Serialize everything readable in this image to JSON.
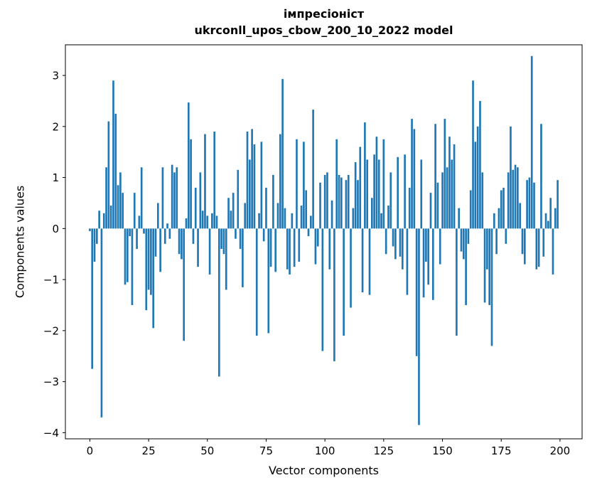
{
  "chart_data": {
    "type": "bar",
    "title": "імпресіоніст\nukrconll_upos_cbow_200_10_2022 model",
    "xlabel": "Vector components",
    "ylabel": "Components values",
    "bar_color": "#1f77b4",
    "bar_width": 0.8,
    "grid": false,
    "legend": null,
    "xlim": [
      -10.4,
      209.4
    ],
    "ylim": [
      -4.12,
      3.6
    ],
    "xticks": [
      0,
      25,
      50,
      75,
      100,
      125,
      150,
      175,
      200
    ],
    "yticks": [
      -4,
      -3,
      -2,
      -1,
      0,
      1,
      2,
      3
    ],
    "values": [
      -0.05,
      -2.75,
      -0.65,
      -0.3,
      0.35,
      -3.7,
      0.3,
      1.2,
      2.1,
      0.45,
      2.9,
      2.25,
      0.85,
      1.1,
      0.7,
      -1.1,
      -1.05,
      -0.15,
      -1.5,
      0.7,
      -0.4,
      0.25,
      1.2,
      -0.1,
      -1.6,
      -1.2,
      -1.3,
      -1.95,
      -0.55,
      0.5,
      -0.85,
      1.2,
      -0.3,
      0.1,
      -0.2,
      1.25,
      1.1,
      1.2,
      -0.5,
      -0.6,
      -2.2,
      0.2,
      2.47,
      1.75,
      -0.3,
      0.8,
      -0.75,
      1.1,
      0.35,
      1.85,
      0.25,
      -0.9,
      0.3,
      1.9,
      0.25,
      -2.9,
      -0.4,
      -0.5,
      -1.2,
      0.6,
      0.35,
      0.7,
      -0.2,
      1.15,
      -0.4,
      -1.15,
      0.5,
      1.9,
      1.35,
      1.95,
      1.65,
      -2.1,
      0.3,
      1.7,
      -0.25,
      0.8,
      -2.05,
      -0.75,
      1.05,
      -0.85,
      0.5,
      1.85,
      2.93,
      0.4,
      -0.8,
      -0.9,
      0.3,
      -0.75,
      1.75,
      -0.65,
      0.45,
      1.7,
      0.75,
      -0.15,
      0.25,
      2.33,
      -0.7,
      -0.35,
      0.9,
      -2.4,
      1.05,
      1.1,
      -0.8,
      0.55,
      -2.6,
      1.75,
      1.05,
      1.0,
      -2.1,
      0.95,
      1.05,
      -1.55,
      0.4,
      1.3,
      0.95,
      1.6,
      -1.25,
      2.08,
      1.35,
      -1.3,
      0.6,
      1.45,
      1.8,
      1.35,
      0.3,
      1.75,
      -0.5,
      0.45,
      1.1,
      -0.35,
      -0.6,
      1.4,
      -0.55,
      -0.8,
      1.45,
      -1.3,
      0.8,
      2.15,
      1.95,
      -2.5,
      -3.85,
      1.35,
      -1.35,
      -0.65,
      -1.1,
      0.7,
      -1.4,
      2.05,
      0.9,
      -0.7,
      1.1,
      2.15,
      1.2,
      1.8,
      1.35,
      1.65,
      -2.1,
      0.4,
      -0.45,
      -0.6,
      -1.5,
      -0.3,
      0.75,
      2.9,
      1.7,
      2.0,
      2.5,
      1.1,
      -1.45,
      -0.8,
      -1.5,
      -2.3,
      0.3,
      -0.5,
      0.4,
      0.75,
      0.8,
      -0.3,
      1.1,
      2.0,
      1.15,
      1.25,
      1.2,
      0.5,
      -0.5,
      -0.7,
      0.95,
      1.0,
      3.38,
      0.9,
      -0.8,
      -0.75,
      2.05,
      -0.55,
      0.3,
      0.15,
      0.6,
      -0.9,
      0.4,
      0.95
    ]
  }
}
